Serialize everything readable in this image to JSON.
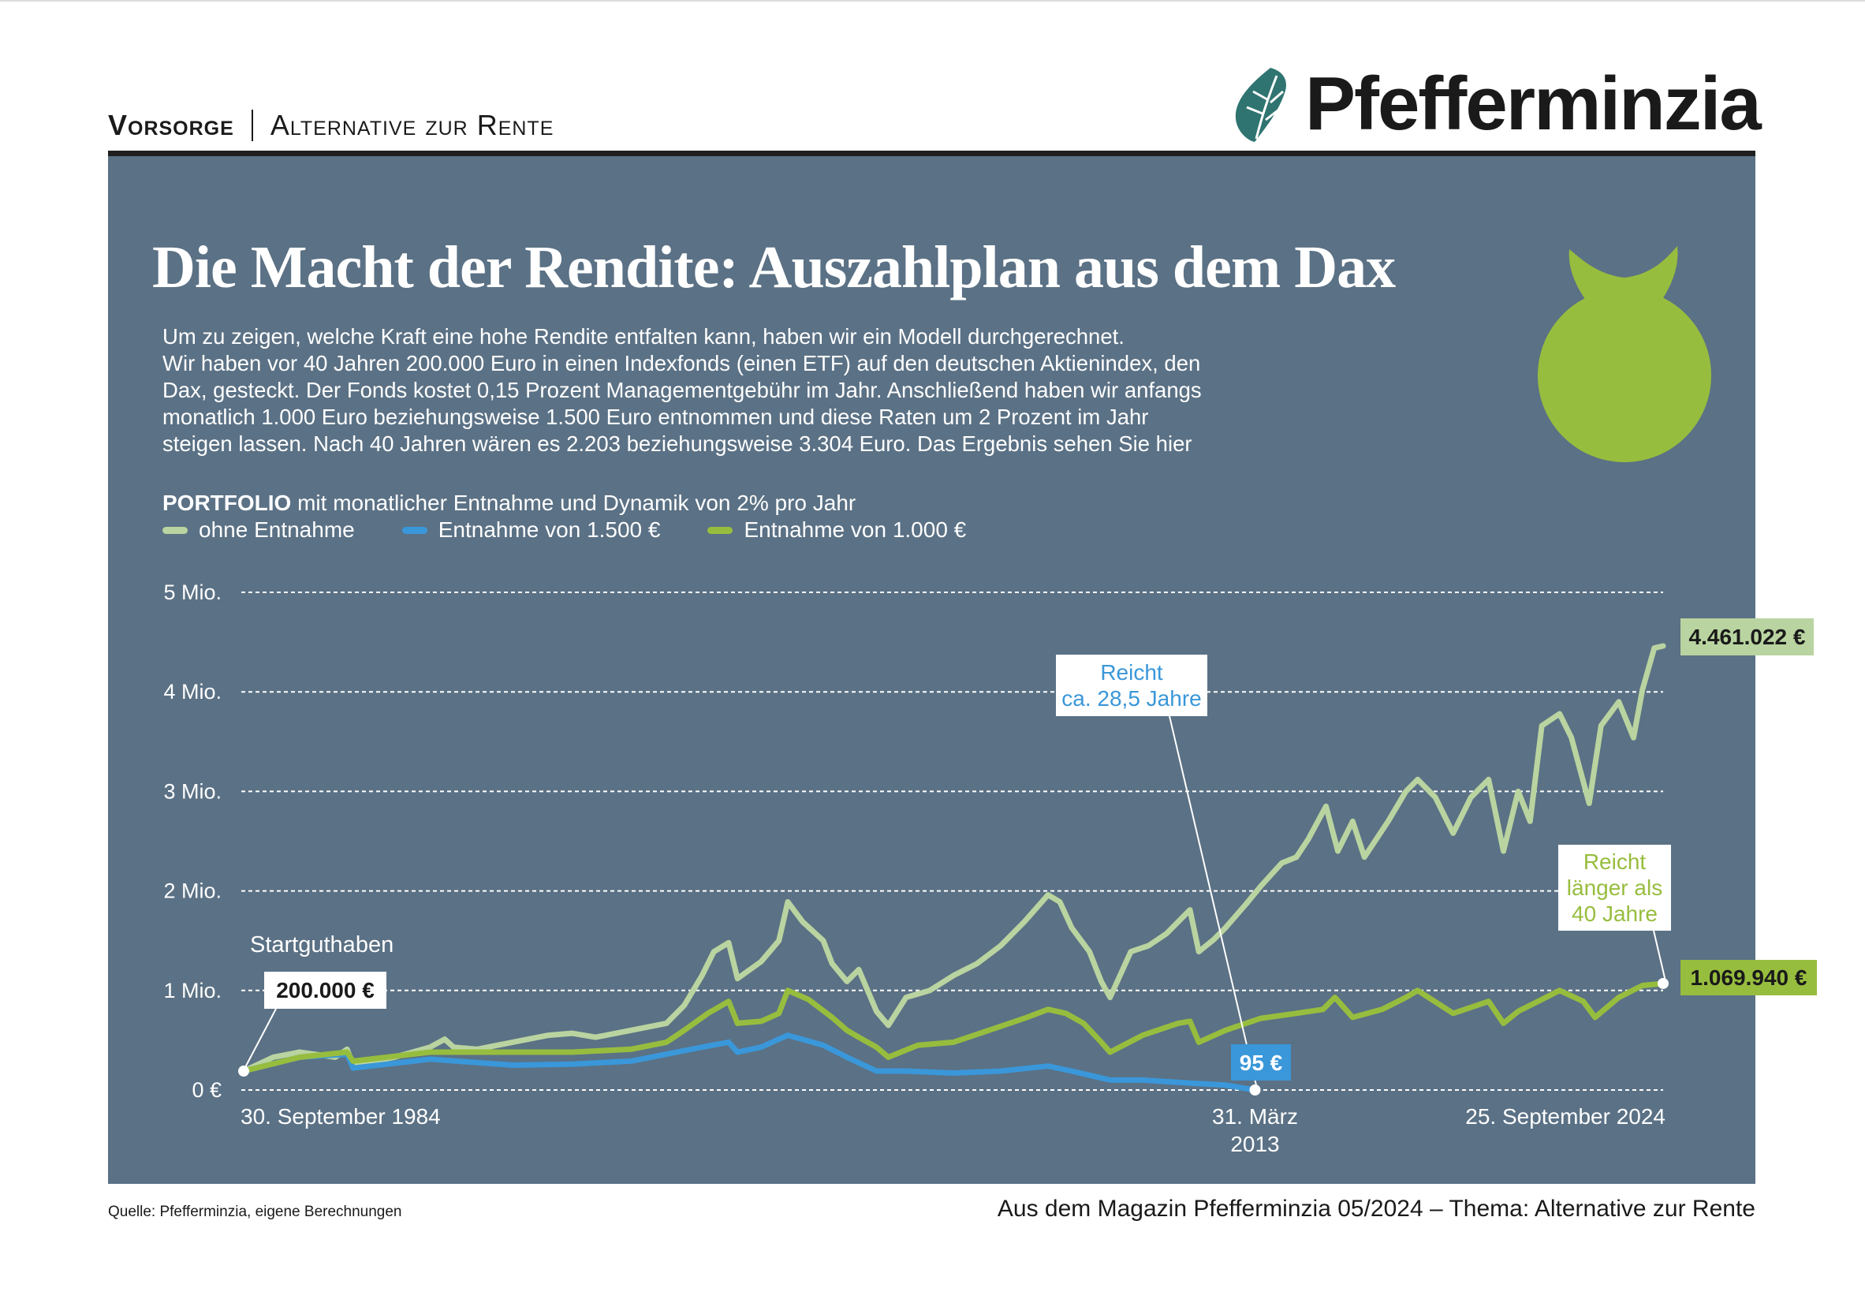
{
  "header": {
    "section": "Vorsorge",
    "topic": "Alternative zur Rente",
    "logo_text": "Pfefferminzia"
  },
  "colors": {
    "panel": "#5b7185",
    "ohne_entnahme": "#b9d4a0",
    "entnahme_1500": "#3a97d9",
    "entnahme_1000": "#97bd3e",
    "logo": "#2f7470"
  },
  "title": "Die Macht der Rendite: Auszahlplan aus dem Dax",
  "intro_lines": [
    "Um zu zeigen, welche Kraft eine hohe Rendite entfalten kann, haben wir ein Modell durchgerechnet.",
    "Wir haben vor 40 Jahren 200.000 Euro in einen Indexfonds (einen ETF) auf den deutschen Aktienindex, den",
    "Dax, gesteckt. Der Fonds kostet 0,15 Prozent Managementgebühr im Jahr. Anschließend haben wir anfangs",
    "monatlich 1.000 Euro beziehungsweise 1.500 Euro entnommen und diese Raten um 2 Prozent im Jahr",
    "steigen lassen. Nach 40 Jahren wären es 2.203 beziehungsweise 3.304 Euro. Das Ergebnis sehen Sie hier"
  ],
  "icons": {
    "logo": "mint-leaf-icon",
    "illustration": "money-bag-icon"
  },
  "chart_data": {
    "type": "line",
    "title_bold": "PORTFOLIO",
    "title_rest": " mit monatlicher Entnahme und Dynamik von 2% pro Jahr",
    "xlabel": "",
    "ylabel": "",
    "ylim": [
      0,
      5000000
    ],
    "xlim": [
      "1984-09",
      "2024-09"
    ],
    "grid": true,
    "legend_position": "top-left",
    "y_ticks": [
      {
        "value": 0,
        "label": "0 €"
      },
      {
        "value": 1000000,
        "label": "1 Mio."
      },
      {
        "value": 2000000,
        "label": "2 Mio."
      },
      {
        "value": 3000000,
        "label": "3 Mio."
      },
      {
        "value": 4000000,
        "label": "4 Mio."
      },
      {
        "value": 5000000,
        "label": "5 Mio."
      }
    ],
    "x_ticks": [
      {
        "date": "1984-09",
        "label": "30. September 1984"
      },
      {
        "date": "2013-03",
        "label": "31. März",
        "label2": "2013"
      },
      {
        "date": "2024-09",
        "label": "25. September 2024"
      }
    ],
    "series": [
      {
        "name": "ohne Entnahme",
        "color": "#b9d4a0",
        "points": [
          [
            "1984-09",
            190000
          ],
          [
            "1985-07",
            330000
          ],
          [
            "1986-04",
            380000
          ],
          [
            "1987-04",
            330000
          ],
          [
            "1987-08",
            410000
          ],
          [
            "1987-10",
            250000
          ],
          [
            "1988-12",
            330000
          ],
          [
            "1989-12",
            430000
          ],
          [
            "1990-05",
            510000
          ],
          [
            "1990-08",
            430000
          ],
          [
            "1991-04",
            410000
          ],
          [
            "1992-04",
            480000
          ],
          [
            "1993-04",
            550000
          ],
          [
            "1993-12",
            570000
          ],
          [
            "1994-08",
            530000
          ],
          [
            "1995-08",
            600000
          ],
          [
            "1996-08",
            670000
          ],
          [
            "1997-02",
            850000
          ],
          [
            "1997-08",
            1150000
          ],
          [
            "1997-12",
            1390000
          ],
          [
            "1998-05",
            1480000
          ],
          [
            "1998-08",
            1120000
          ],
          [
            "1999-04",
            1290000
          ],
          [
            "1999-10",
            1500000
          ],
          [
            "2000-01",
            1890000
          ],
          [
            "2000-06",
            1690000
          ],
          [
            "2001-01",
            1500000
          ],
          [
            "2001-04",
            1270000
          ],
          [
            "2001-09",
            1090000
          ],
          [
            "2002-01",
            1210000
          ],
          [
            "2002-07",
            790000
          ],
          [
            "2002-11",
            650000
          ],
          [
            "2003-05",
            930000
          ],
          [
            "2004-01",
            1000000
          ],
          [
            "2004-09",
            1150000
          ],
          [
            "2005-05",
            1270000
          ],
          [
            "2006-01",
            1450000
          ],
          [
            "2006-09",
            1690000
          ],
          [
            "2007-05",
            1960000
          ],
          [
            "2007-09",
            1890000
          ],
          [
            "2008-01",
            1630000
          ],
          [
            "2008-07",
            1390000
          ],
          [
            "2008-11",
            1090000
          ],
          [
            "2009-02",
            930000
          ],
          [
            "2009-09",
            1390000
          ],
          [
            "2010-03",
            1450000
          ],
          [
            "2010-09",
            1570000
          ],
          [
            "2011-05",
            1810000
          ],
          [
            "2011-08",
            1390000
          ],
          [
            "2012-01",
            1510000
          ],
          [
            "2012-05",
            1630000
          ],
          [
            "2012-12",
            1870000
          ],
          [
            "2013-05",
            2050000
          ],
          [
            "2013-12",
            2280000
          ],
          [
            "2014-05",
            2340000
          ],
          [
            "2014-09",
            2520000
          ],
          [
            "2015-03",
            2850000
          ],
          [
            "2015-07",
            2400000
          ],
          [
            "2015-12",
            2700000
          ],
          [
            "2016-04",
            2340000
          ],
          [
            "2016-12",
            2700000
          ],
          [
            "2017-06",
            3000000
          ],
          [
            "2017-10",
            3120000
          ],
          [
            "2018-04",
            2940000
          ],
          [
            "2018-10",
            2580000
          ],
          [
            "2019-04",
            2940000
          ],
          [
            "2019-10",
            3120000
          ],
          [
            "2020-03",
            2400000
          ],
          [
            "2020-08",
            3000000
          ],
          [
            "2020-12",
            2700000
          ],
          [
            "2021-04",
            3660000
          ],
          [
            "2021-10",
            3780000
          ],
          [
            "2022-02",
            3540000
          ],
          [
            "2022-08",
            2880000
          ],
          [
            "2022-12",
            3660000
          ],
          [
            "2023-06",
            3900000
          ],
          [
            "2023-11",
            3540000
          ],
          [
            "2024-02",
            4020000
          ],
          [
            "2024-06",
            4440000
          ],
          [
            "2024-09",
            4461022
          ]
        ]
      },
      {
        "name": "Entnahme von 1.500 €",
        "color": "#3a97d9",
        "points": [
          [
            "1984-09",
            190000
          ],
          [
            "1986-04",
            330000
          ],
          [
            "1987-08",
            360000
          ],
          [
            "1987-10",
            220000
          ],
          [
            "1989-12",
            310000
          ],
          [
            "1992-04",
            250000
          ],
          [
            "1993-12",
            260000
          ],
          [
            "1995-08",
            290000
          ],
          [
            "1996-08",
            360000
          ],
          [
            "1997-08",
            430000
          ],
          [
            "1998-05",
            480000
          ],
          [
            "1998-08",
            380000
          ],
          [
            "1999-04",
            430000
          ],
          [
            "2000-01",
            550000
          ],
          [
            "2001-01",
            450000
          ],
          [
            "2001-09",
            330000
          ],
          [
            "2002-07",
            190000
          ],
          [
            "2003-05",
            190000
          ],
          [
            "2004-09",
            170000
          ],
          [
            "2006-01",
            190000
          ],
          [
            "2007-05",
            240000
          ],
          [
            "2008-01",
            190000
          ],
          [
            "2009-02",
            100000
          ],
          [
            "2010-01",
            100000
          ],
          [
            "2011-05",
            70000
          ],
          [
            "2012-05",
            50000
          ],
          [
            "2013-03",
            95
          ]
        ]
      },
      {
        "name": "Entnahme von 1.000 €",
        "color": "#97bd3e",
        "points": [
          [
            "1984-09",
            190000
          ],
          [
            "1986-04",
            330000
          ],
          [
            "1987-08",
            380000
          ],
          [
            "1987-10",
            290000
          ],
          [
            "1989-12",
            380000
          ],
          [
            "1992-04",
            380000
          ],
          [
            "1993-12",
            380000
          ],
          [
            "1995-08",
            410000
          ],
          [
            "1996-08",
            480000
          ],
          [
            "1997-02",
            600000
          ],
          [
            "1997-10",
            770000
          ],
          [
            "1998-05",
            890000
          ],
          [
            "1998-08",
            670000
          ],
          [
            "1999-04",
            690000
          ],
          [
            "1999-10",
            770000
          ],
          [
            "2000-01",
            1000000
          ],
          [
            "2000-08",
            910000
          ],
          [
            "2001-04",
            730000
          ],
          [
            "2001-09",
            600000
          ],
          [
            "2002-01",
            530000
          ],
          [
            "2002-07",
            430000
          ],
          [
            "2002-11",
            330000
          ],
          [
            "2003-09",
            450000
          ],
          [
            "2004-09",
            480000
          ],
          [
            "2005-09",
            600000
          ],
          [
            "2006-09",
            720000
          ],
          [
            "2007-05",
            810000
          ],
          [
            "2007-11",
            770000
          ],
          [
            "2008-05",
            670000
          ],
          [
            "2008-11",
            480000
          ],
          [
            "2009-02",
            380000
          ],
          [
            "2010-01",
            550000
          ],
          [
            "2011-01",
            670000
          ],
          [
            "2011-05",
            690000
          ],
          [
            "2011-08",
            480000
          ],
          [
            "2012-05",
            600000
          ],
          [
            "2013-05",
            720000
          ],
          [
            "2014-05",
            770000
          ],
          [
            "2015-02",
            810000
          ],
          [
            "2015-06",
            930000
          ],
          [
            "2015-12",
            730000
          ],
          [
            "2016-10",
            810000
          ],
          [
            "2017-06",
            930000
          ],
          [
            "2017-10",
            1000000
          ],
          [
            "2018-10",
            770000
          ],
          [
            "2019-10",
            890000
          ],
          [
            "2020-03",
            670000
          ],
          [
            "2020-08",
            790000
          ],
          [
            "2021-04",
            910000
          ],
          [
            "2021-10",
            1000000
          ],
          [
            "2022-06",
            890000
          ],
          [
            "2022-10",
            730000
          ],
          [
            "2023-06",
            930000
          ],
          [
            "2024-02",
            1050000
          ],
          [
            "2024-09",
            1069940
          ]
        ]
      }
    ],
    "annotations": {
      "start_label": "Startguthaben",
      "start_value": "200.000 €",
      "reach_1500_line1": "Reicht",
      "reach_1500_line2": "ca. 28,5 Jahre",
      "end_1500_value": "95 €",
      "end_ohne_value": "4.461.022 €",
      "reach_1000_line1": "Reicht",
      "reach_1000_line2": "länger als",
      "reach_1000_line3": "40 Jahre",
      "end_1000_value": "1.069.940 €"
    }
  },
  "footer": {
    "source": "Quelle: Pfefferminzia, eigene Berechnungen",
    "magazine": "Aus dem Magazin Pfefferminzia 05/2024 – Thema: Alternative zur Rente"
  }
}
